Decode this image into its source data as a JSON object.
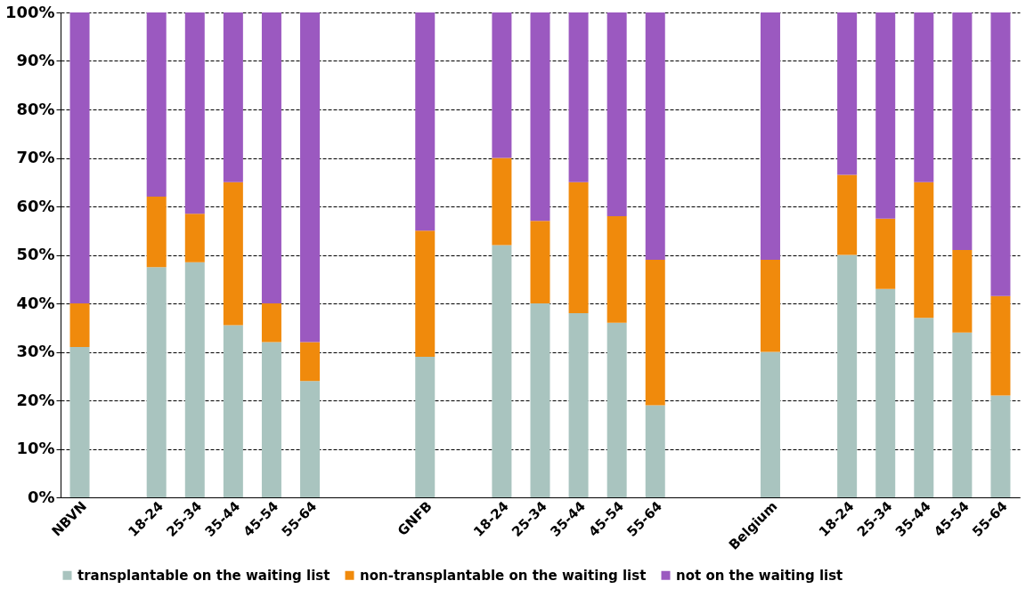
{
  "chart_data": {
    "type": "bar",
    "stacked": true,
    "categories": [
      "NBVN",
      null,
      "18-24",
      "25-34",
      "35-44",
      "45-54",
      "55-64",
      null,
      null,
      "GNFB",
      null,
      "18-24",
      "25-34",
      "35-44",
      "45-54",
      "55-64",
      null,
      null,
      "Belgium",
      null,
      "18-24",
      "25-34",
      "35-44",
      "45-54",
      "55-64"
    ],
    "series": [
      {
        "name": "transplantable on the waiting list",
        "color": "#a9c4bf",
        "values": [
          31,
          null,
          47.5,
          48.5,
          35.5,
          32,
          24,
          null,
          null,
          29,
          null,
          52,
          40,
          38,
          36,
          19,
          null,
          null,
          30,
          null,
          50,
          43,
          37,
          34,
          21
        ]
      },
      {
        "name": "non-transplantable on the waiting list",
        "color": "#f08a0c",
        "values": [
          9,
          null,
          14.5,
          10,
          29.5,
          8,
          8,
          null,
          null,
          26,
          null,
          18,
          17,
          27,
          22,
          30,
          null,
          null,
          19,
          null,
          16.5,
          14.5,
          28,
          17,
          20.5
        ]
      },
      {
        "name": "not on the waiting list",
        "color": "#9b59c0",
        "values": [
          60,
          null,
          38,
          41.5,
          35,
          60,
          68,
          null,
          null,
          45,
          null,
          30,
          43,
          35,
          42,
          51,
          null,
          null,
          51,
          null,
          33.5,
          42.5,
          35,
          49,
          58.5
        ]
      }
    ],
    "ylim": [
      0,
      100
    ],
    "yticks": [
      {
        "value": 0,
        "label": "0%"
      },
      {
        "value": 10,
        "label": "10%"
      },
      {
        "value": 20,
        "label": "20%"
      },
      {
        "value": 30,
        "label": "30%"
      },
      {
        "value": 40,
        "label": "40%"
      },
      {
        "value": 50,
        "label": "50%"
      },
      {
        "value": 60,
        "label": "60%"
      },
      {
        "value": 70,
        "label": "70%"
      },
      {
        "value": 80,
        "label": "80%"
      },
      {
        "value": 90,
        "label": "90%"
      },
      {
        "value": 100,
        "label": "100%"
      }
    ],
    "grid": "y",
    "legend": "bottom"
  }
}
